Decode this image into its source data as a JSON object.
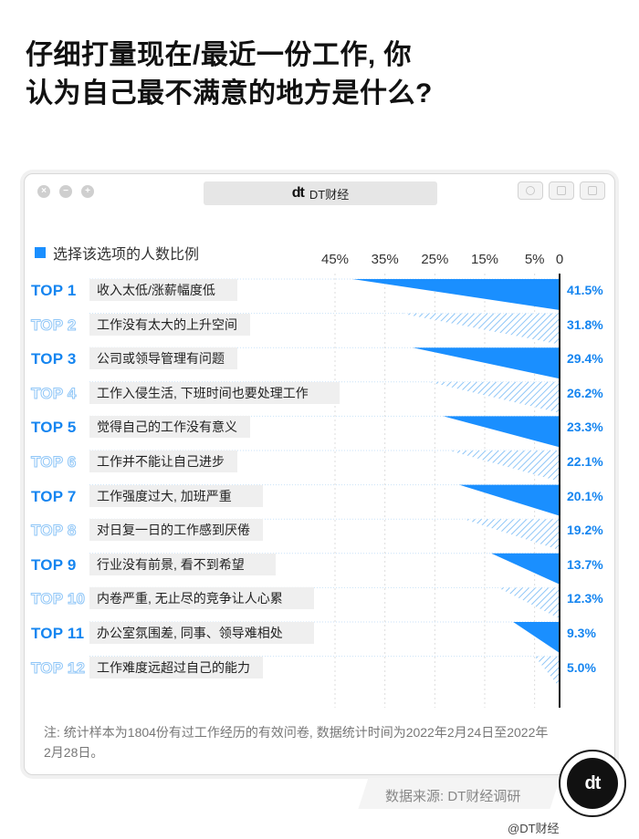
{
  "title_line1": "仔细打量现在/最近一份工作, 你",
  "title_line2": "认为自己最不满意的地方是什么?",
  "window": {
    "tab_logo": "dt",
    "tab_name": "DT财经",
    "dot_close": "×",
    "dot_min": "−",
    "dot_max": "+"
  },
  "legend_label": "选择该选项的人数比例",
  "accent_color": "#1a8fff",
  "chart_data": {
    "type": "bar",
    "orientation": "horizontal",
    "direction": "right-to-left",
    "x_ticks": [
      "45%",
      "35%",
      "25%",
      "15%",
      "5%",
      "0"
    ],
    "x_tick_values": [
      45,
      35,
      25,
      15,
      5,
      0
    ],
    "xlim": [
      0,
      45
    ],
    "unit": "%",
    "categories": [
      "收入太低/涨薪幅度低",
      "工作没有太大的上升空间",
      "公司或领导管理有问题",
      "工作入侵生活, 下班时间也要处理工作",
      "觉得自己的工作没有意义",
      "工作并不能让自己进步",
      "工作强度过大, 加班严重",
      "对日复一日的工作感到厌倦",
      "行业没有前景, 看不到希望",
      "内卷严重, 无止尽的竞争让人心累",
      "办公室氛围差, 同事、领导难相处",
      "工作难度远超过自己的能力"
    ],
    "ranks": [
      "TOP 1",
      "TOP 2",
      "TOP 3",
      "TOP 4",
      "TOP 5",
      "TOP 6",
      "TOP 7",
      "TOP 8",
      "TOP 9",
      "TOP 10",
      "TOP 11",
      "TOP 12"
    ],
    "values": [
      41.5,
      31.8,
      29.4,
      26.2,
      23.3,
      22.1,
      20.1,
      19.2,
      13.7,
      12.3,
      9.3,
      5.0
    ],
    "value_labels": [
      "41.5%",
      "31.8%",
      "29.4%",
      "26.2%",
      "23.3%",
      "22.1%",
      "20.1%",
      "19.2%",
      "13.7%",
      "12.3%",
      "9.3%",
      "5.0%"
    ]
  },
  "note": "注: 统计样本为1804份有过工作经历的有效问卷, 数据统计时间为2022年2月24日至2022年2月28日。",
  "source": "数据来源: DT财经调研",
  "badge_logo": "dt",
  "watermark": "@DT财经"
}
